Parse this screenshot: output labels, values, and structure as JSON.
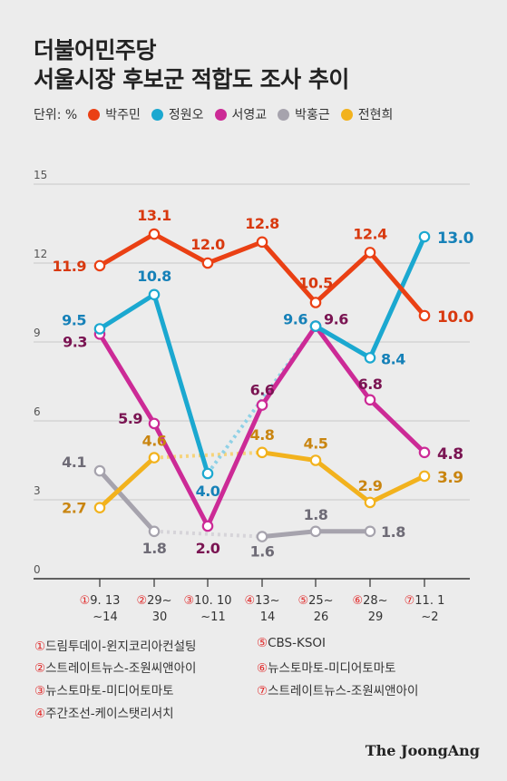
{
  "title_line1": "더불어민주당",
  "title_line2": "서울시장 후보군 적합도 조사 추이",
  "unit_label": "단위: %",
  "brand": "The JoongAng",
  "colors": {
    "박주민": "#ea4014",
    "정원오": "#1ba8d0",
    "서영교": "#cc2a96",
    "박홍근": "#a6a3ad",
    "전현희": "#f2b21d",
    "label_박주민": "#d8390f",
    "label_정원오": "#1681b8",
    "label_서영교": "#7a1452",
    "label_박홍근": "#6e6b76",
    "label_전현희": "#c98510",
    "axis": "#333333",
    "grid": "#c8c8c8",
    "source_num": "#e12a2a"
  },
  "sources": [
    {
      "num": "①",
      "text": "드림투데이-윈지코리아컨설팅"
    },
    {
      "num": "②",
      "text": "스트레이트뉴스-조원씨앤아이"
    },
    {
      "num": "③",
      "text": "뉴스토마토-미디어토마토"
    },
    {
      "num": "④",
      "text": "주간조선-케이스탯리서치"
    },
    {
      "num": "⑤",
      "text": "CBS-KSOI"
    },
    {
      "num": "⑥",
      "text": "뉴스토마토-미디어토마토"
    },
    {
      "num": "⑦",
      "text": "스트레이트뉴스-조원씨앤아이"
    }
  ],
  "chart_data": {
    "type": "line",
    "title": "더불어민주당 서울시장 후보군 적합도 조사 추이",
    "ylabel": "단위: %",
    "ylim": [
      0,
      15
    ],
    "yticks": [
      "0",
      "3",
      "6",
      "9",
      "12",
      "15"
    ],
    "grid": true,
    "legend_position": "top",
    "categories": [
      {
        "num": "①",
        "line1": "9. 13",
        "line2": "~14"
      },
      {
        "num": "②",
        "line1": "29~",
        "line2": "30"
      },
      {
        "num": "③",
        "line1": "10. 10",
        "line2": "~11"
      },
      {
        "num": "④",
        "line1": "13~",
        "line2": "14"
      },
      {
        "num": "⑤",
        "line1": "25~",
        "line2": "26"
      },
      {
        "num": "⑥",
        "line1": "28~",
        "line2": "29"
      },
      {
        "num": "⑦",
        "line1": "11. 1",
        "line2": "~2"
      }
    ],
    "series": [
      {
        "name": "박주민",
        "values": [
          11.9,
          13.1,
          12.0,
          12.8,
          10.5,
          12.4,
          10.0
        ],
        "labels": [
          "11.9",
          "13.1",
          "12.0",
          "12.8",
          "10.5",
          "12.4",
          "10.0"
        ]
      },
      {
        "name": "정원오",
        "values": [
          9.5,
          10.8,
          4.0,
          null,
          9.6,
          8.4,
          13.0
        ],
        "labels": [
          "9.5",
          "10.8",
          "4.0",
          "",
          "9.6",
          "8.4",
          "13.0"
        ]
      },
      {
        "name": "서영교",
        "values": [
          9.3,
          5.9,
          2.0,
          6.6,
          9.6,
          6.8,
          4.8
        ],
        "labels": [
          "9.3",
          "5.9",
          "2.0",
          "6.6",
          "9.6",
          "6.8",
          "4.8"
        ]
      },
      {
        "name": "박홍근",
        "values": [
          4.1,
          1.8,
          null,
          1.6,
          1.8,
          1.8,
          null
        ],
        "labels": [
          "4.1",
          "1.8",
          "",
          "1.6",
          "1.8",
          "1.8",
          ""
        ]
      },
      {
        "name": "전현희",
        "values": [
          2.7,
          4.6,
          null,
          4.8,
          4.5,
          2.9,
          3.9
        ],
        "labels": [
          "2.7",
          "4.6",
          "",
          "4.8",
          "4.5",
          "2.9",
          "3.9"
        ]
      }
    ]
  }
}
